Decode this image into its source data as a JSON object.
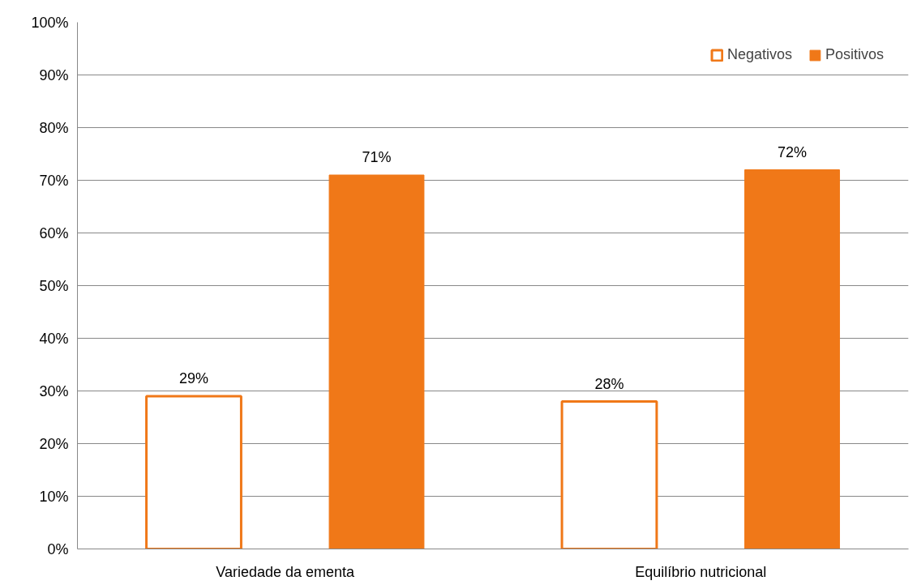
{
  "chart_data": {
    "type": "bar",
    "categories": [
      "Variedade da ementa",
      "Equilíbrio nutricional"
    ],
    "series": [
      {
        "name": "Negativos",
        "color": "#f07818",
        "colors": [
          "#ffffff",
          "#ffffff"
        ],
        "values": [
          29,
          28
        ],
        "value_labels": [
          "29%",
          "28%"
        ]
      },
      {
        "name": "Positivos",
        "color": "#f07818",
        "values": [
          71,
          72
        ],
        "value_labels": [
          "71%",
          "72%"
        ]
      }
    ],
    "ylim": [
      0,
      100
    ],
    "yticks": [
      {
        "value": 0,
        "label": "0%"
      },
      {
        "value": 10,
        "label": "10%"
      },
      {
        "value": 20,
        "label": "20%"
      },
      {
        "value": 30,
        "label": "30%"
      },
      {
        "value": 40,
        "label": "40%"
      },
      {
        "value": 50,
        "label": "50%"
      },
      {
        "value": 60,
        "label": "60%"
      },
      {
        "value": 70,
        "label": "70%"
      },
      {
        "value": 80,
        "label": "80%"
      },
      {
        "value": 90,
        "label": "90%"
      },
      {
        "value": 100,
        "label": "100%"
      }
    ],
    "grid": "y",
    "legend": "top right"
  }
}
